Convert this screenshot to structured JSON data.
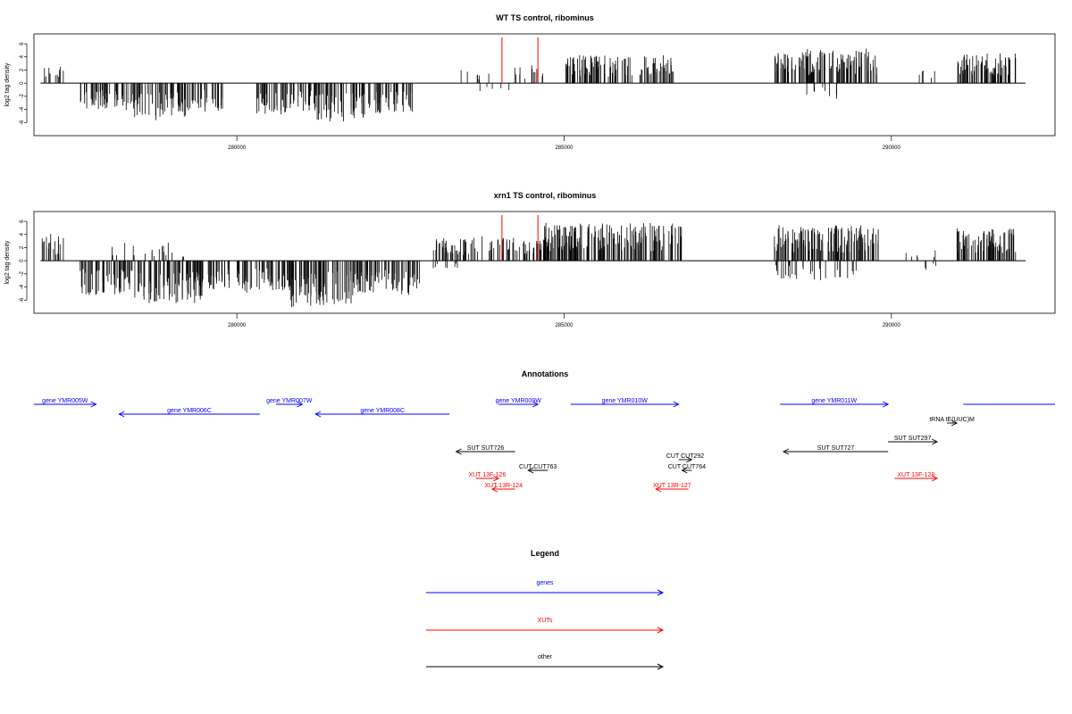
{
  "chart_data": [
    {
      "type": "bar",
      "title": "WT TS control, ribominus",
      "xlabel": "",
      "ylabel": "log2 tag density",
      "xlim": [
        276900,
        292500
      ],
      "ylim": [
        -8,
        7.5
      ],
      "xticks": [
        280000,
        285000,
        290000
      ],
      "yticks": [
        -6,
        -4,
        -2,
        0,
        2,
        4,
        6
      ],
      "grid": false,
      "marker_color": "#ff0000",
      "bar_color": "#000000",
      "markers": [
        284050,
        284600
      ],
      "segments": [
        {
          "x0": 277000,
          "x1": 277350,
          "side": "plus",
          "amp": 2.5,
          "n": 12
        },
        {
          "x0": 277600,
          "x1": 278400,
          "side": "minus",
          "amp": 4.0,
          "n": 50
        },
        {
          "x0": 278400,
          "x1": 279300,
          "side": "minus",
          "amp": 5.2,
          "n": 60
        },
        {
          "x0": 279300,
          "x1": 279800,
          "side": "minus",
          "amp": 4.0,
          "n": 30
        },
        {
          "x0": 280300,
          "x1": 281200,
          "side": "minus",
          "amp": 4.5,
          "n": 55
        },
        {
          "x0": 281200,
          "x1": 282000,
          "side": "minus",
          "amp": 5.8,
          "n": 55
        },
        {
          "x0": 282000,
          "x1": 282700,
          "side": "minus",
          "amp": 4.5,
          "n": 45
        },
        {
          "x0": 283300,
          "x1": 283900,
          "side": "plus",
          "amp": 2.0,
          "n": 8
        },
        {
          "x0": 283700,
          "x1": 284200,
          "side": "minus",
          "amp": 1.2,
          "n": 5
        },
        {
          "x0": 284200,
          "x1": 284800,
          "side": "plus",
          "amp": 2.5,
          "n": 12
        },
        {
          "x0": 285000,
          "x1": 286700,
          "side": "plus",
          "amp": 4.0,
          "n": 110
        },
        {
          "x0": 288200,
          "x1": 289800,
          "side": "plus",
          "amp": 4.8,
          "n": 130
        },
        {
          "x0": 288700,
          "x1": 289300,
          "side": "minus",
          "amp": 2.5,
          "n": 8
        },
        {
          "x0": 290200,
          "x1": 290700,
          "side": "plus",
          "amp": 2.0,
          "n": 5
        },
        {
          "x0": 291000,
          "x1": 291900,
          "side": "plus",
          "amp": 4.2,
          "n": 70
        }
      ]
    },
    {
      "type": "bar",
      "title": "xrn1 TS control, ribominus",
      "xlabel": "",
      "ylabel": "log2 tag density",
      "xlim": [
        276900,
        292500
      ],
      "ylim": [
        -8,
        7.5
      ],
      "xticks": [
        280000,
        285000,
        290000
      ],
      "yticks": [
        -6,
        -4,
        -2,
        0,
        2,
        4,
        6
      ],
      "grid": false,
      "marker_color": "#ff0000",
      "bar_color": "#000000",
      "markers": [
        284050,
        284600
      ],
      "segments": [
        {
          "x0": 277000,
          "x1": 277350,
          "side": "plus",
          "amp": 3.8,
          "n": 18
        },
        {
          "x0": 277600,
          "x1": 278400,
          "side": "minus",
          "amp": 5.0,
          "n": 60
        },
        {
          "x0": 278000,
          "x1": 279200,
          "side": "plus",
          "amp": 2.5,
          "n": 20
        },
        {
          "x0": 278400,
          "x1": 279500,
          "side": "minus",
          "amp": 6.0,
          "n": 80
        },
        {
          "x0": 279500,
          "x1": 279900,
          "side": "minus",
          "amp": 4.0,
          "n": 25
        },
        {
          "x0": 280000,
          "x1": 280800,
          "side": "minus",
          "amp": 4.5,
          "n": 50
        },
        {
          "x0": 280800,
          "x1": 281800,
          "side": "minus",
          "amp": 6.5,
          "n": 80
        },
        {
          "x0": 281800,
          "x1": 282800,
          "side": "minus",
          "amp": 5.0,
          "n": 70
        },
        {
          "x0": 283000,
          "x1": 283400,
          "side": "minus",
          "amp": 1.5,
          "n": 8
        },
        {
          "x0": 283000,
          "x1": 284700,
          "side": "plus",
          "amp": 3.5,
          "n": 90
        },
        {
          "x0": 284700,
          "x1": 286800,
          "side": "plus",
          "amp": 5.5,
          "n": 170
        },
        {
          "x0": 288200,
          "x1": 289800,
          "side": "plus",
          "amp": 5.0,
          "n": 140
        },
        {
          "x0": 288200,
          "x1": 289600,
          "side": "minus",
          "amp": 2.8,
          "n": 30
        },
        {
          "x0": 290200,
          "x1": 290700,
          "side": "plus",
          "amp": 2.0,
          "n": 6
        },
        {
          "x0": 290400,
          "x1": 290700,
          "side": "minus",
          "amp": 1.5,
          "n": 4
        },
        {
          "x0": 291000,
          "x1": 291900,
          "side": "plus",
          "amp": 4.5,
          "n": 75
        }
      ]
    }
  ],
  "annotations": {
    "title": "Annotations",
    "features": [
      {
        "label": "gene YMR005W",
        "x0": 276900,
        "x1": 277850,
        "dir": "right",
        "row": 0,
        "color": "#0000ff"
      },
      {
        "label": "gene YMR006C",
        "x0": 278200,
        "x1": 280350,
        "dir": "left",
        "row": 1,
        "color": "#0000ff"
      },
      {
        "label": "gene YMR007W",
        "x0": 280600,
        "x1": 281000,
        "dir": "right",
        "row": 0,
        "color": "#0000ff"
      },
      {
        "label": "gene YMR008C",
        "x0": 281200,
        "x1": 283250,
        "dir": "left",
        "row": 1,
        "color": "#0000ff"
      },
      {
        "label": "gene YMR009W",
        "x0": 284000,
        "x1": 284600,
        "dir": "right",
        "row": 0,
        "color": "#0000ff"
      },
      {
        "label": "gene YMR010W",
        "x0": 285100,
        "x1": 286750,
        "dir": "right",
        "row": 0,
        "color": "#0000ff"
      },
      {
        "label": "gene YMR011W",
        "x0": 288300,
        "x1": 289950,
        "dir": "right",
        "row": 0,
        "color": "#0000ff"
      },
      {
        "label": "",
        "x0": 291100,
        "x1": 292500,
        "dir": "none",
        "row": 0,
        "color": "#0000ff"
      },
      {
        "label": "tRNA tE(UUC)M",
        "x0": 290850,
        "x1": 291000,
        "dir": "right",
        "row": 2,
        "color": "#000000"
      },
      {
        "label": "SUT SUT297",
        "x0": 289950,
        "x1": 290700,
        "dir": "right",
        "row": 3,
        "color": "#000000"
      },
      {
        "label": "SUT SUT726",
        "x0": 283350,
        "x1": 284250,
        "dir": "left",
        "row": 4,
        "color": "#000000"
      },
      {
        "label": "SUT SUT727",
        "x0": 288350,
        "x1": 289950,
        "dir": "left",
        "row": 4,
        "color": "#000000"
      },
      {
        "label": "CUT CUT292",
        "x0": 286750,
        "x1": 286950,
        "dir": "right",
        "row": 5,
        "color": "#000000"
      },
      {
        "label": "CUT CUT763",
        "x0": 284450,
        "x1": 284750,
        "dir": "left",
        "row": 6,
        "color": "#000000"
      },
      {
        "label": "CUT CUT764",
        "x0": 286800,
        "x1": 286950,
        "dir": "left",
        "row": 6,
        "color": "#000000"
      },
      {
        "label": "XUT 13F-126",
        "x0": 283650,
        "x1": 284000,
        "dir": "right",
        "row": 7,
        "color": "#ff0000"
      },
      {
        "label": "XUT 13F-128",
        "x0": 290050,
        "x1": 290700,
        "dir": "right",
        "row": 7,
        "color": "#ff0000"
      },
      {
        "label": "XUT 13R-124",
        "x0": 283900,
        "x1": 284250,
        "dir": "left",
        "row": 8,
        "color": "#ff0000"
      },
      {
        "label": "XUT 13R-127",
        "x0": 286400,
        "x1": 286900,
        "dir": "left",
        "row": 8,
        "color": "#ff0000"
      }
    ]
  },
  "legend": {
    "title": "Legend",
    "items": [
      {
        "label": "genes",
        "color": "#0000ff"
      },
      {
        "label": "XUTs",
        "color": "#ff0000"
      },
      {
        "label": "other",
        "color": "#000000"
      }
    ]
  }
}
